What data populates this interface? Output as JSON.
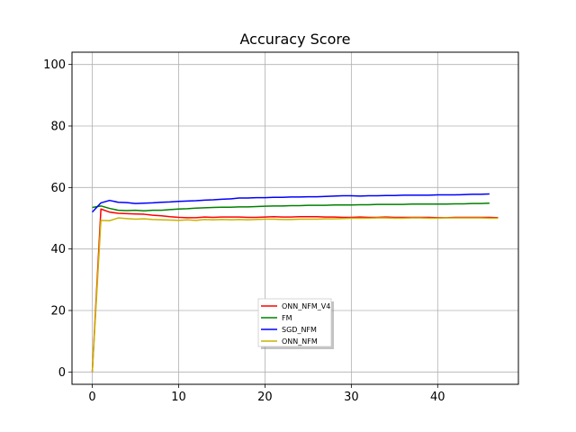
{
  "chart_data": {
    "type": "line",
    "title": "Accuracy Score",
    "xlabel": "",
    "ylabel": "",
    "xlim": [
      -2.35,
      49.35
    ],
    "ylim": [
      -4,
      104
    ],
    "xticks": [
      0,
      10,
      20,
      30,
      40
    ],
    "yticks": [
      0,
      20,
      40,
      60,
      80,
      100
    ],
    "grid": true,
    "legend_position": "lower-center",
    "series": [
      {
        "name": "ONN_NFM_V4",
        "color": "#ff0000",
        "x": [
          0,
          1,
          2,
          3,
          4,
          5,
          6,
          7,
          8,
          9,
          10,
          11,
          12,
          13,
          14,
          15,
          16,
          17,
          18,
          19,
          20,
          21,
          22,
          23,
          24,
          25,
          26,
          27,
          28,
          29,
          30,
          31,
          32,
          33,
          34,
          35,
          36,
          37,
          38,
          39,
          40,
          41,
          42,
          43,
          44,
          45,
          46,
          47
        ],
        "values": [
          0,
          53.0,
          52.0,
          51.6,
          51.5,
          51.4,
          51.3,
          51.0,
          50.8,
          50.5,
          50.3,
          50.2,
          50.2,
          50.4,
          50.3,
          50.4,
          50.4,
          50.4,
          50.3,
          50.3,
          50.4,
          50.5,
          50.4,
          50.4,
          50.5,
          50.5,
          50.5,
          50.4,
          50.4,
          50.3,
          50.3,
          50.4,
          50.3,
          50.3,
          50.4,
          50.3,
          50.3,
          50.3,
          50.3,
          50.3,
          50.2,
          50.2,
          50.3,
          50.3,
          50.3,
          50.3,
          50.3,
          50.2
        ]
      },
      {
        "name": "FM",
        "color": "#008000",
        "x": [
          0,
          1,
          2,
          3,
          4,
          5,
          6,
          7,
          8,
          9,
          10,
          11,
          12,
          13,
          14,
          15,
          16,
          17,
          18,
          19,
          20,
          21,
          22,
          23,
          24,
          25,
          26,
          27,
          28,
          29,
          30,
          31,
          32,
          33,
          34,
          35,
          36,
          37,
          38,
          39,
          40,
          41,
          42,
          43,
          44,
          45,
          46
        ],
        "values": [
          53.5,
          54.0,
          53.2,
          52.6,
          52.5,
          52.6,
          52.4,
          52.6,
          52.6,
          52.8,
          53.0,
          53.1,
          53.3,
          53.4,
          53.5,
          53.6,
          53.6,
          53.7,
          53.7,
          53.8,
          53.9,
          54.0,
          54.0,
          54.1,
          54.1,
          54.2,
          54.2,
          54.2,
          54.3,
          54.3,
          54.3,
          54.4,
          54.4,
          54.5,
          54.5,
          54.5,
          54.5,
          54.6,
          54.6,
          54.6,
          54.6,
          54.6,
          54.7,
          54.7,
          54.8,
          54.8,
          54.9
        ]
      },
      {
        "name": "SGD_NFM",
        "color": "#0000ff",
        "x": [
          0,
          1,
          2,
          3,
          4,
          5,
          6,
          7,
          8,
          9,
          10,
          11,
          12,
          13,
          14,
          15,
          16,
          17,
          18,
          19,
          20,
          21,
          22,
          23,
          24,
          25,
          26,
          27,
          28,
          29,
          30,
          31,
          32,
          33,
          34,
          35,
          36,
          37,
          38,
          39,
          40,
          41,
          42,
          43,
          44,
          45,
          46
        ],
        "values": [
          52.0,
          55.0,
          55.8,
          55.2,
          55.1,
          54.8,
          54.9,
          55.0,
          55.2,
          55.3,
          55.5,
          55.6,
          55.7,
          55.9,
          56.0,
          56.2,
          56.3,
          56.6,
          56.6,
          56.7,
          56.7,
          56.8,
          56.8,
          56.9,
          56.9,
          57.0,
          57.0,
          57.1,
          57.2,
          57.3,
          57.3,
          57.2,
          57.3,
          57.3,
          57.4,
          57.4,
          57.5,
          57.5,
          57.5,
          57.5,
          57.6,
          57.6,
          57.6,
          57.7,
          57.8,
          57.8,
          57.9
        ]
      },
      {
        "name": "ONN_NFM",
        "color": "#c8b400",
        "x": [
          0,
          1,
          2,
          3,
          4,
          5,
          6,
          7,
          8,
          9,
          10,
          11,
          12,
          13,
          14,
          15,
          16,
          17,
          18,
          19,
          20,
          21,
          22,
          23,
          24,
          25,
          26,
          27,
          28,
          29,
          30,
          31,
          32,
          33,
          34,
          35,
          36,
          37,
          38,
          39,
          40,
          41,
          42,
          43,
          44,
          45,
          46,
          47
        ],
        "values": [
          0,
          49.3,
          49.2,
          50.1,
          49.9,
          49.7,
          49.8,
          49.6,
          49.5,
          49.4,
          49.3,
          49.5,
          49.3,
          49.6,
          49.5,
          49.6,
          49.5,
          49.6,
          49.5,
          49.6,
          49.7,
          49.7,
          49.6,
          49.6,
          49.7,
          49.7,
          49.7,
          49.8,
          49.8,
          49.9,
          50.0,
          50.0,
          50.0,
          50.1,
          50.1,
          50.0,
          50.0,
          50.1,
          50.1,
          50.0,
          50.0,
          50.1,
          50.1,
          50.1,
          50.1,
          50.1,
          50.0,
          50.0
        ]
      }
    ]
  }
}
